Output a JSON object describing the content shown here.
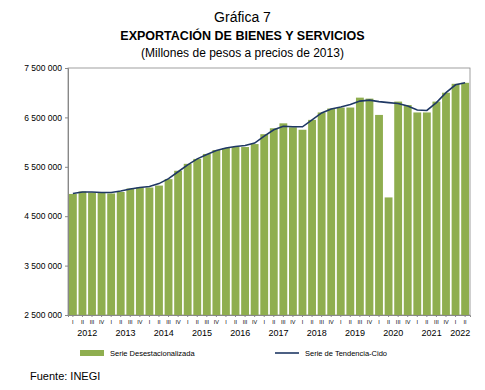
{
  "chart_data": {
    "type": "bar",
    "title": "Gráfica 7",
    "subtitle": "EXPORTACIÓN DE BIENES Y SERVICIOS",
    "units": "(Millones de pesos a precios de 2013)",
    "source": "Fuente: INEGI",
    "categories": [
      "I",
      "II",
      "III",
      "IV",
      "I",
      "II",
      "III",
      "IV",
      "I",
      "II",
      "III",
      "IV",
      "I",
      "II",
      "III",
      "IV",
      "I",
      "II",
      "III",
      "IV",
      "I",
      "II",
      "III",
      "IV",
      "I",
      "II",
      "III",
      "IV",
      "I",
      "II",
      "III",
      "IV",
      "I",
      "II",
      "III",
      "IV",
      "I",
      "II",
      "III",
      "IV",
      "I",
      "II"
    ],
    "years": [
      "2012",
      "2013",
      "2014",
      "2015",
      "2016",
      "2017",
      "2018",
      "2019",
      "2020",
      "2021",
      "2022"
    ],
    "series": [
      {
        "name": "Serie Desestacionalizada",
        "type": "bar",
        "color": "#8fae4f",
        "values": [
          4950000,
          5000000,
          4980000,
          4970000,
          4960000,
          4990000,
          5060000,
          5080000,
          5080000,
          5120000,
          5250000,
          5420000,
          5560000,
          5660000,
          5760000,
          5840000,
          5880000,
          5900000,
          5900000,
          5960000,
          6160000,
          6280000,
          6380000,
          6300000,
          6250000,
          6450000,
          6600000,
          6680000,
          6700000,
          6700000,
          6900000,
          6880000,
          6550000,
          4880000,
          6820000,
          6750000,
          6600000,
          6600000,
          6820000,
          7000000,
          7180000,
          7200000
        ]
      },
      {
        "name": "Serie de Tendencia-Cido",
        "type": "line",
        "color": "#1f3864",
        "values": [
          4960000,
          4990000,
          4990000,
          4980000,
          4980000,
          5010000,
          5050000,
          5080000,
          5100000,
          5160000,
          5260000,
          5400000,
          5540000,
          5660000,
          5750000,
          5830000,
          5880000,
          5910000,
          5930000,
          5980000,
          6120000,
          6250000,
          6320000,
          6310000,
          6310000,
          6450000,
          6590000,
          6670000,
          6710000,
          6760000,
          6830000,
          6850000,
          6820000,
          6800000,
          6780000,
          6730000,
          6650000,
          6640000,
          6800000,
          7000000,
          7160000,
          7200000
        ]
      }
    ],
    "ylim": [
      2500000,
      7500000
    ],
    "yticks": [
      {
        "value": 2500000,
        "label": "2 500 000"
      },
      {
        "value": 3500000,
        "label": "3 500 000"
      },
      {
        "value": 4500000,
        "label": "4 500 000"
      },
      {
        "value": 5500000,
        "label": "5 500 000"
      },
      {
        "value": 6500000,
        "label": "6 500 000"
      },
      {
        "value": 7500000,
        "label": "7 500 000"
      }
    ],
    "grid": false,
    "legend": "bottom"
  }
}
